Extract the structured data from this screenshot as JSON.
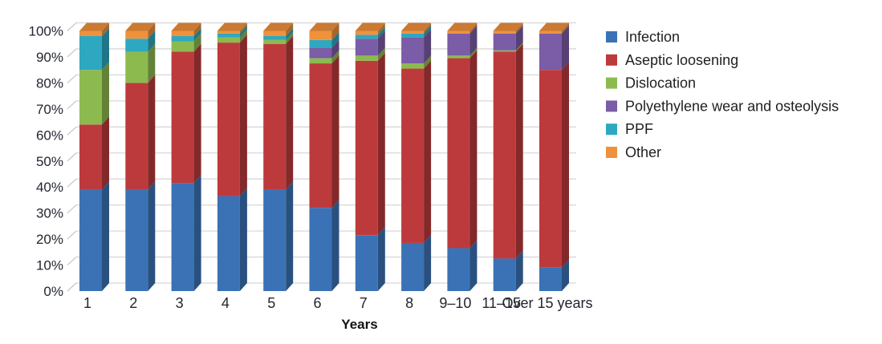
{
  "chart_data": {
    "type": "bar",
    "stacked": true,
    "stacked_100_percent": true,
    "title": "",
    "xlabel": "Years",
    "ylabel": "",
    "ylim": [
      0,
      100
    ],
    "grid": true,
    "legend_position": "right",
    "y_tick_labels": [
      "0%",
      "10%",
      "20%",
      "30%",
      "40%",
      "50%",
      "60%",
      "70%",
      "80%",
      "90%",
      "100%"
    ],
    "categories": [
      "1",
      "2",
      "3",
      "4",
      "5",
      "6",
      "7",
      "8",
      "9–10",
      "11–15",
      "Over 15 years"
    ],
    "series": [
      {
        "name": "Infection",
        "color": "#3A72B5",
        "values": [
          39,
          39,
          41.5,
          36.5,
          39,
          32,
          21.5,
          18.5,
          16.5,
          12.5,
          9
        ]
      },
      {
        "name": "Aseptic loosening",
        "color": "#BD3A3C",
        "values": [
          25,
          41,
          50.5,
          59,
          56,
          55.5,
          67,
          67,
          73,
          79.5,
          76
        ]
      },
      {
        "name": "Dislocation",
        "color": "#8DBA4E",
        "values": [
          21,
          12,
          4,
          2,
          1.5,
          2,
          2,
          2,
          1,
          0.5,
          0
        ]
      },
      {
        "name": "Polyethylene wear and osteolysis",
        "color": "#7B5CA6",
        "values": [
          0,
          0,
          0,
          0,
          0,
          4,
          6.5,
          10,
          8.5,
          6.5,
          14
        ]
      },
      {
        "name": "PPF",
        "color": "#2EA8C0",
        "values": [
          13,
          5,
          2,
          1.5,
          1.5,
          3,
          1.5,
          1.5,
          0,
          0,
          0
        ]
      },
      {
        "name": "Other",
        "color": "#F0913C",
        "values": [
          2,
          3,
          2,
          1,
          2,
          3.5,
          1.5,
          1,
          1,
          1,
          1
        ]
      }
    ],
    "colors": {
      "grid_line": "#D8D8D8",
      "tick_connector": "#C6C6C6",
      "axis_text": "#22262F",
      "legend_text": "#1F1F1F"
    }
  }
}
